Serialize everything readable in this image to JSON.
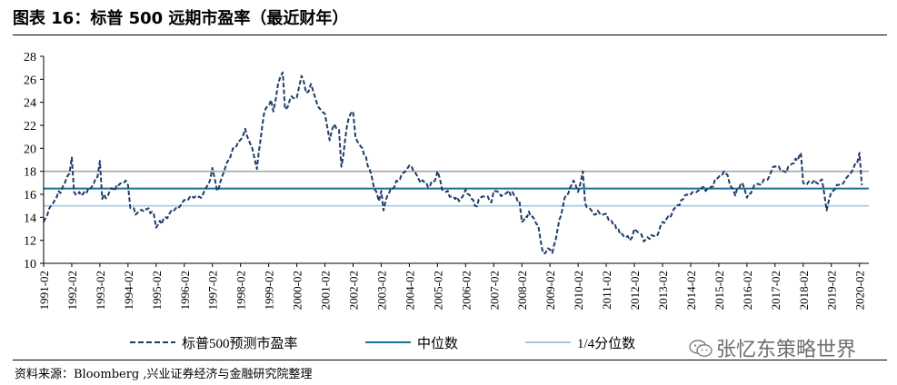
{
  "header": {
    "title": "图表 16：标普 500 远期市盈率（最近财年）"
  },
  "footer": {
    "source": "资料来源：Bloomberg ,兴业证券经济与金融研究院整理"
  },
  "watermark": {
    "text": "张忆东策略世界",
    "icon": "wechat-icon"
  },
  "chart_data": {
    "type": "line",
    "title": "",
    "xlabel": "",
    "ylabel": "",
    "ylim": [
      10,
      28
    ],
    "yticks": [
      10,
      12,
      14,
      16,
      18,
      20,
      22,
      24,
      26,
      28
    ],
    "xlim": [
      "1991-02",
      "2020-06"
    ],
    "xticks": [
      "1991-02",
      "1992-02",
      "1993-02",
      "1994-02",
      "1995-02",
      "1996-02",
      "1997-02",
      "1998-02",
      "1999-02",
      "2000-02",
      "2001-02",
      "2002-02",
      "2003-02",
      "2004-02",
      "2005-02",
      "2006-02",
      "2007-02",
      "2008-02",
      "2009-02",
      "2010-02",
      "2011-02",
      "2012-02",
      "2013-02",
      "2014-02",
      "2015-02",
      "2016-02",
      "2017-02",
      "2018-02",
      "2019-02",
      "2020-02"
    ],
    "legend_position": "bottom",
    "grid": false,
    "series": [
      {
        "name": "标普500预测市盈率",
        "style": "dashed",
        "color": "#1f3c68",
        "points": [
          [
            "1991-02",
            13.6
          ],
          [
            "1991-06",
            15.2
          ],
          [
            "1991-10",
            16.6
          ],
          [
            "1992-01",
            17.8
          ],
          [
            "1992-02",
            19.2
          ],
          [
            "1992-03",
            16.2
          ],
          [
            "1992-06",
            15.9
          ],
          [
            "1992-10",
            16.5
          ],
          [
            "1993-01",
            17.5
          ],
          [
            "1993-02",
            18.9
          ],
          [
            "1993-03",
            15.6
          ],
          [
            "1993-06",
            16.2
          ],
          [
            "1993-10",
            16.8
          ],
          [
            "1994-01",
            17.2
          ],
          [
            "1994-02",
            16.8
          ],
          [
            "1994-03",
            14.8
          ],
          [
            "1994-06",
            14.4
          ],
          [
            "1994-10",
            14.7
          ],
          [
            "1995-01",
            14.3
          ],
          [
            "1995-02",
            13.1
          ],
          [
            "1995-06",
            14.0
          ],
          [
            "1995-10",
            14.7
          ],
          [
            "1996-01",
            15.2
          ],
          [
            "1996-06",
            15.7
          ],
          [
            "1996-10",
            16.0
          ],
          [
            "1997-01",
            17.2
          ],
          [
            "1997-02",
            18.3
          ],
          [
            "1997-04",
            16.3
          ],
          [
            "1997-07",
            18.0
          ],
          [
            "1997-10",
            19.5
          ],
          [
            "1998-01",
            20.6
          ],
          [
            "1998-04",
            21.7
          ],
          [
            "1998-07",
            20.0
          ],
          [
            "1998-09",
            18.2
          ],
          [
            "1998-12",
            23.0
          ],
          [
            "1999-03",
            24.2
          ],
          [
            "1999-04",
            23.2
          ],
          [
            "1999-06",
            25.6
          ],
          [
            "1999-08",
            26.6
          ],
          [
            "1999-09",
            23.4
          ],
          [
            "1999-11",
            24.2
          ],
          [
            "2000-02",
            24.4
          ],
          [
            "2000-04",
            26.3
          ],
          [
            "2000-06",
            24.8
          ],
          [
            "2000-08",
            25.6
          ],
          [
            "2000-10",
            24.3
          ],
          [
            "2000-12",
            23.4
          ],
          [
            "2001-02",
            23.0
          ],
          [
            "2001-04",
            20.7
          ],
          [
            "2001-06",
            22.1
          ],
          [
            "2001-08",
            21.6
          ],
          [
            "2001-09",
            18.4
          ],
          [
            "2001-12",
            22.5
          ],
          [
            "2002-02",
            23.2
          ],
          [
            "2002-03",
            21.0
          ],
          [
            "2002-06",
            20.0
          ],
          [
            "2002-09",
            18.2
          ],
          [
            "2002-11",
            16.5
          ],
          [
            "2003-01",
            15.4
          ],
          [
            "2003-02",
            16.3
          ],
          [
            "2003-03",
            14.6
          ],
          [
            "2003-06",
            16.5
          ],
          [
            "2003-10",
            17.3
          ],
          [
            "2004-01",
            18.2
          ],
          [
            "2004-02",
            18.5
          ],
          [
            "2004-06",
            17.3
          ],
          [
            "2004-10",
            16.6
          ],
          [
            "2005-01",
            17.2
          ],
          [
            "2005-02",
            18.0
          ],
          [
            "2005-04",
            16.4
          ],
          [
            "2005-08",
            15.8
          ],
          [
            "2005-12",
            15.6
          ],
          [
            "2006-02",
            16.4
          ],
          [
            "2006-06",
            15.0
          ],
          [
            "2006-10",
            15.8
          ],
          [
            "2007-01",
            15.3
          ],
          [
            "2007-02",
            16.3
          ],
          [
            "2007-06",
            16.0
          ],
          [
            "2007-10",
            16.2
          ],
          [
            "2008-01",
            15.4
          ],
          [
            "2008-02",
            13.6
          ],
          [
            "2008-05",
            14.5
          ],
          [
            "2008-09",
            13.3
          ],
          [
            "2008-11",
            10.9
          ],
          [
            "2009-01",
            11.3
          ],
          [
            "2009-02",
            11.2
          ],
          [
            "2009-03",
            10.9
          ],
          [
            "2009-06",
            13.8
          ],
          [
            "2009-09",
            16.0
          ],
          [
            "2009-12",
            17.2
          ],
          [
            "2010-02",
            16.2
          ],
          [
            "2010-04",
            18.0
          ],
          [
            "2010-05",
            15.2
          ],
          [
            "2010-08",
            14.5
          ],
          [
            "2010-12",
            14.2
          ],
          [
            "2011-02",
            14.3
          ],
          [
            "2011-04",
            13.8
          ],
          [
            "2011-08",
            12.5
          ],
          [
            "2011-12",
            12.0
          ],
          [
            "2012-02",
            13.0
          ],
          [
            "2012-04",
            12.6
          ],
          [
            "2012-06",
            11.9
          ],
          [
            "2012-10",
            12.4
          ],
          [
            "2012-12",
            12.5
          ],
          [
            "2013-02",
            13.6
          ],
          [
            "2013-06",
            14.3
          ],
          [
            "2013-10",
            15.5
          ],
          [
            "2014-02",
            16.0
          ],
          [
            "2014-06",
            16.3
          ],
          [
            "2014-10",
            16.5
          ],
          [
            "2015-02",
            17.5
          ],
          [
            "2015-05",
            17.8
          ],
          [
            "2015-08",
            16.5
          ],
          [
            "2015-09",
            15.9
          ],
          [
            "2015-12",
            17.0
          ],
          [
            "2016-02",
            15.7
          ],
          [
            "2016-06",
            16.9
          ],
          [
            "2016-10",
            17.3
          ],
          [
            "2017-02",
            18.4
          ],
          [
            "2017-06",
            18.0
          ],
          [
            "2017-10",
            18.7
          ],
          [
            "2018-01",
            19.6
          ],
          [
            "2018-02",
            17.0
          ],
          [
            "2018-06",
            17.0
          ],
          [
            "2018-10",
            17.3
          ],
          [
            "2018-12",
            14.6
          ],
          [
            "2019-02",
            16.2
          ],
          [
            "2019-06",
            16.9
          ],
          [
            "2019-10",
            17.8
          ],
          [
            "2020-01",
            18.7
          ],
          [
            "2020-02",
            19.6
          ],
          [
            "2020-03",
            16.8
          ]
        ]
      },
      {
        "name": "中位数",
        "style": "solid",
        "color": "#1e6e98",
        "value": 16.5
      },
      {
        "name": "1/4分位数",
        "style": "solid",
        "color": "#a3c8e6",
        "value": 15.0
      },
      {
        "name": "",
        "style": "solid",
        "color": "#a6a6a6",
        "value": 18.0
      }
    ]
  }
}
